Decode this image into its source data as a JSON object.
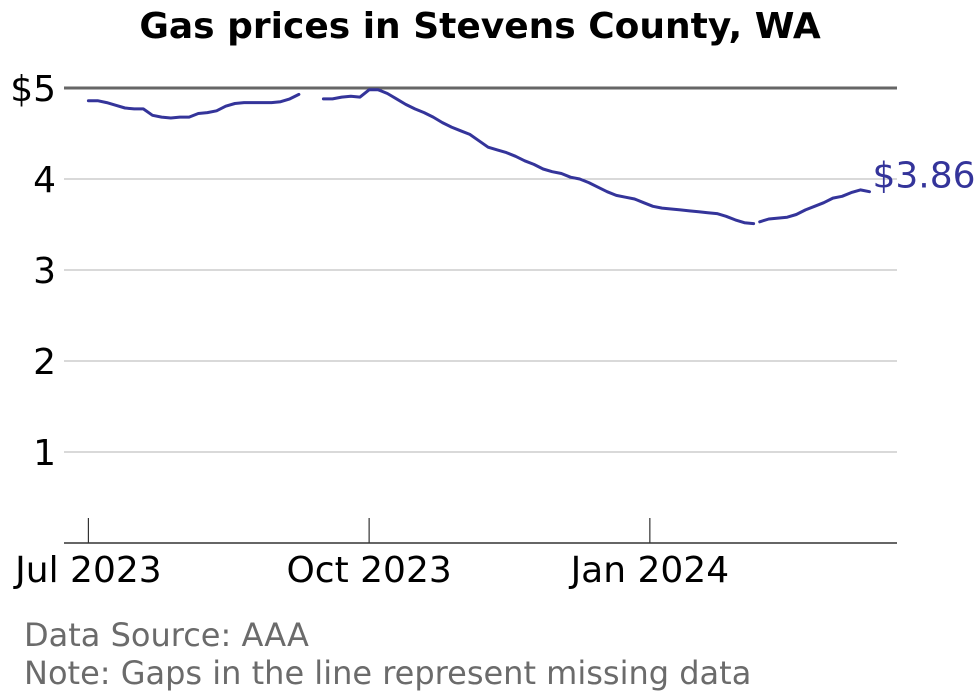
{
  "chart_data": {
    "type": "line",
    "title": "Gas prices in Stevens County, WA",
    "xlabel": "",
    "ylabel": "",
    "y_tick_labels": [
      "1",
      "2",
      "3",
      "4",
      "$5"
    ],
    "y_ticks": [
      1,
      2,
      3,
      4,
      5
    ],
    "ylim": [
      0,
      5
    ],
    "x_tick_labels": [
      "Jul 2023",
      "Oct 2023",
      "Jan 2024"
    ],
    "x_ticks": [
      "2023-07-01",
      "2023-10-01",
      "2024-01-01"
    ],
    "xlim": [
      "2023-06-23",
      "2024-03-22"
    ],
    "grid": true,
    "line_color": "#34349a",
    "end_label": "$3.86",
    "series": [
      {
        "segments": [
          {
            "x": [
              "2023-07-01",
              "2023-07-04",
              "2023-07-07",
              "2023-07-10",
              "2023-07-13",
              "2023-07-16",
              "2023-07-19",
              "2023-07-22",
              "2023-07-25",
              "2023-07-28",
              "2023-07-31",
              "2023-08-03",
              "2023-08-06",
              "2023-08-09",
              "2023-08-12",
              "2023-08-15",
              "2023-08-18",
              "2023-08-21",
              "2023-08-24",
              "2023-08-27",
              "2023-08-30",
              "2023-09-02",
              "2023-09-05",
              "2023-09-08"
            ],
            "y": [
              4.86,
              4.86,
              4.84,
              4.81,
              4.78,
              4.77,
              4.77,
              4.7,
              4.68,
              4.67,
              4.68,
              4.68,
              4.72,
              4.73,
              4.75,
              4.8,
              4.83,
              4.84,
              4.84,
              4.84,
              4.84,
              4.85,
              4.88,
              4.93
            ]
          },
          {
            "x": [
              "2023-09-16",
              "2023-09-19",
              "2023-09-22",
              "2023-09-25",
              "2023-09-28",
              "2023-10-01",
              "2023-10-04",
              "2023-10-07",
              "2023-10-10",
              "2023-10-13",
              "2023-10-16",
              "2023-10-19",
              "2023-10-22",
              "2023-10-25",
              "2023-10-28",
              "2023-10-31",
              "2023-11-03",
              "2023-11-06",
              "2023-11-09",
              "2023-11-12",
              "2023-11-15",
              "2023-11-18",
              "2023-11-21",
              "2023-11-24",
              "2023-11-27",
              "2023-11-30",
              "2023-12-03",
              "2023-12-06",
              "2023-12-09",
              "2023-12-12",
              "2023-12-15",
              "2023-12-18",
              "2023-12-21",
              "2023-12-24",
              "2023-12-27",
              "2023-12-30",
              "2024-01-02",
              "2024-01-05",
              "2024-01-08",
              "2024-01-11",
              "2024-01-14",
              "2024-01-17",
              "2024-01-20",
              "2024-01-23",
              "2024-01-26",
              "2024-01-29",
              "2024-02-01",
              "2024-02-04"
            ],
            "y": [
              4.88,
              4.88,
              4.9,
              4.91,
              4.9,
              4.98,
              4.98,
              4.94,
              4.88,
              4.82,
              4.77,
              4.73,
              4.68,
              4.62,
              4.57,
              4.53,
              4.49,
              4.42,
              4.35,
              4.32,
              4.29,
              4.25,
              4.2,
              4.16,
              4.11,
              4.08,
              4.06,
              4.02,
              4.0,
              3.96,
              3.91,
              3.86,
              3.82,
              3.8,
              3.78,
              3.74,
              3.7,
              3.68,
              3.67,
              3.66,
              3.65,
              3.64,
              3.63,
              3.62,
              3.59,
              3.55,
              3.52,
              3.51
            ]
          },
          {
            "x": [
              "2024-02-06",
              "2024-02-09",
              "2024-02-12",
              "2024-02-15",
              "2024-02-18",
              "2024-02-21",
              "2024-02-24",
              "2024-02-27",
              "2024-03-01",
              "2024-03-04",
              "2024-03-07",
              "2024-03-10",
              "2024-03-13"
            ],
            "y": [
              3.53,
              3.56,
              3.57,
              3.58,
              3.61,
              3.66,
              3.7,
              3.74,
              3.79,
              3.81,
              3.85,
              3.88,
              3.86
            ]
          }
        ]
      }
    ],
    "notes": [
      "Data Source: AAA",
      "Note: Gaps in the line represent missing data"
    ]
  }
}
